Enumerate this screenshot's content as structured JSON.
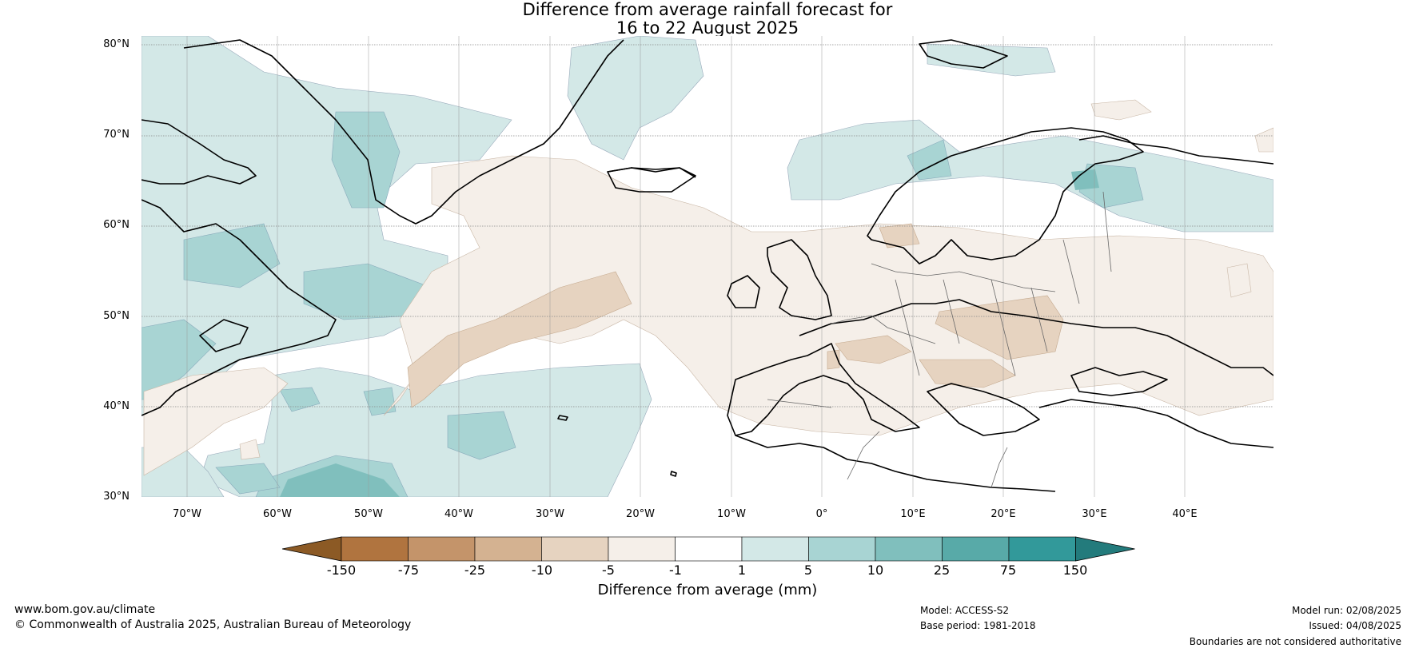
{
  "title": {
    "line1": "Difference from average rainfall forecast for",
    "line2": "16 to 22 August 2025"
  },
  "map": {
    "lat_labels": [
      "80°N",
      "70°N",
      "60°N",
      "50°N",
      "40°N",
      "30°N"
    ],
    "lon_labels": [
      "70°W",
      "60°W",
      "50°W",
      "40°W",
      "30°W",
      "20°W",
      "10°W",
      "0°",
      "10°E",
      "20°E",
      "30°E",
      "40°E"
    ],
    "lat_range": [
      30,
      80
    ],
    "lon_range": [
      -75,
      50
    ],
    "gridlines": true
  },
  "colorbar": {
    "title": "Difference from average (mm)",
    "labels": [
      "-150",
      "-75",
      "-25",
      "-10",
      "-5",
      "-1",
      "1",
      "5",
      "10",
      "25",
      "75",
      "150"
    ],
    "colors": [
      "#8c5a25",
      "#b0743f",
      "#c4946a",
      "#d4b291",
      "#e6d3c0",
      "#f5efe9",
      "#ffffff",
      "#d3e8e7",
      "#a8d4d3",
      "#80bfbd",
      "#58aaa8",
      "#32999a",
      "#237b7c"
    ]
  },
  "footer": {
    "website": "www.bom.gov.au/climate",
    "copyright": "© Commonwealth of Australia 2025, Australian Bureau of Meteorology",
    "model": "Model: ACCESS-S2",
    "base_period": "Base period: 1981-2018",
    "model_run": "Model run: 02/08/2025",
    "issued": "Issued: 04/08/2025",
    "disclaimer": "Boundaries are not considered authoritative"
  }
}
